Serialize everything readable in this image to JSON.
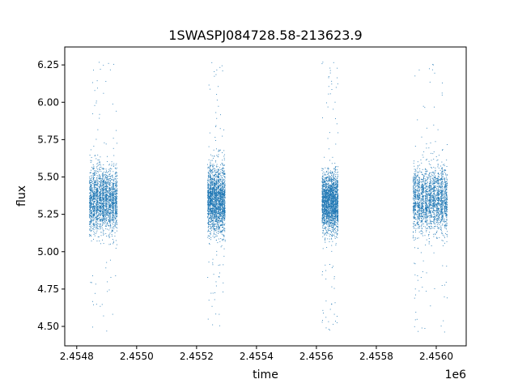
{
  "chart_data": {
    "type": "scatter",
    "title": "1SWASPJ084728.58-213623.9",
    "xlabel": "time",
    "ylabel": "flux",
    "x_offset_label": "1e6",
    "xlim": [
      2454760,
      2456100
    ],
    "ylim": [
      4.37,
      6.37
    ],
    "x_ticks": [
      2454800,
      2455000,
      2455200,
      2455400,
      2455600,
      2455800,
      2456000
    ],
    "x_tick_labels": [
      "2.4548",
      "2.4550",
      "2.4552",
      "2.4554",
      "2.4556",
      "2.4558",
      "2.4560"
    ],
    "y_ticks": [
      4.5,
      4.75,
      5.0,
      5.25,
      5.5,
      5.75,
      6.0,
      6.25
    ],
    "y_tick_labels": [
      "4.50",
      "4.75",
      "5.00",
      "5.25",
      "5.50",
      "5.75",
      "6.00",
      "6.25"
    ],
    "grid": false,
    "marker_color": "#1f77b4",
    "series": [
      {
        "segments": [
          {
            "x_start": 2454840,
            "x_end": 2454935,
            "median": 5.35,
            "core_min": 5.05,
            "core_max": 5.65,
            "min": 4.47,
            "max": 6.28
          },
          {
            "x_start": 2455235,
            "x_end": 2455295,
            "median": 5.35,
            "core_min": 5.05,
            "core_max": 5.65,
            "min": 4.49,
            "max": 6.27
          },
          {
            "x_start": 2455617,
            "x_end": 2455672,
            "median": 5.33,
            "core_min": 5.05,
            "core_max": 5.6,
            "min": 4.46,
            "max": 6.28
          },
          {
            "x_start": 2455920,
            "x_end": 2456037,
            "median": 5.35,
            "core_min": 5.05,
            "core_max": 5.65,
            "min": 4.46,
            "max": 6.29
          }
        ]
      }
    ]
  }
}
